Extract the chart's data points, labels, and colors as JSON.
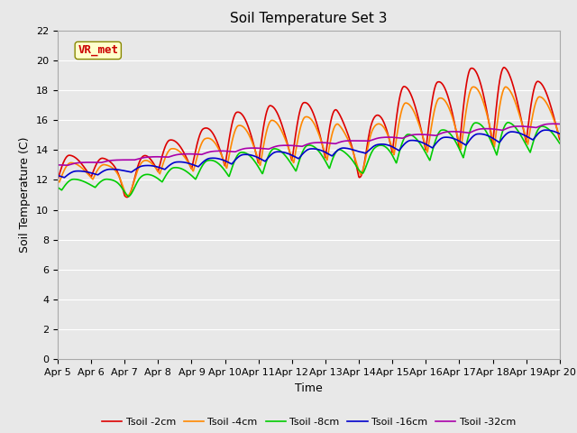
{
  "title": "Soil Temperature Set 3",
  "xlabel": "Time",
  "ylabel": "Soil Temperature (C)",
  "ylim": [
    0,
    22
  ],
  "yticks": [
    0,
    2,
    4,
    6,
    8,
    10,
    12,
    14,
    16,
    18,
    20,
    22
  ],
  "x_labels": [
    "Apr 5",
    "Apr 6",
    "Apr 7",
    "Apr 8",
    "Apr 9",
    "Apr 10",
    "Apr 11",
    "Apr 12",
    "Apr 13",
    "Apr 14",
    "Apr 15",
    "Apr 16",
    "Apr 17",
    "Apr 18",
    "Apr 19",
    "Apr 20"
  ],
  "series": [
    {
      "label": "Tsoil -2cm",
      "color": "#dd0000",
      "lw": 1.2
    },
    {
      "label": "Tsoil -4cm",
      "color": "#ff8800",
      "lw": 1.2
    },
    {
      "label": "Tsoil -8cm",
      "color": "#00cc00",
      "lw": 1.2
    },
    {
      "label": "Tsoil -16cm",
      "color": "#0000cc",
      "lw": 1.2
    },
    {
      "label": "Tsoil -32cm",
      "color": "#aa00aa",
      "lw": 1.2
    }
  ],
  "annotation_text": "VR_met",
  "bg_color": "#e8e8e8",
  "plot_bg_color": "#e8e8e8",
  "grid_color": "#ffffff",
  "title_fontsize": 11,
  "axis_label_fontsize": 9,
  "tick_fontsize": 8
}
